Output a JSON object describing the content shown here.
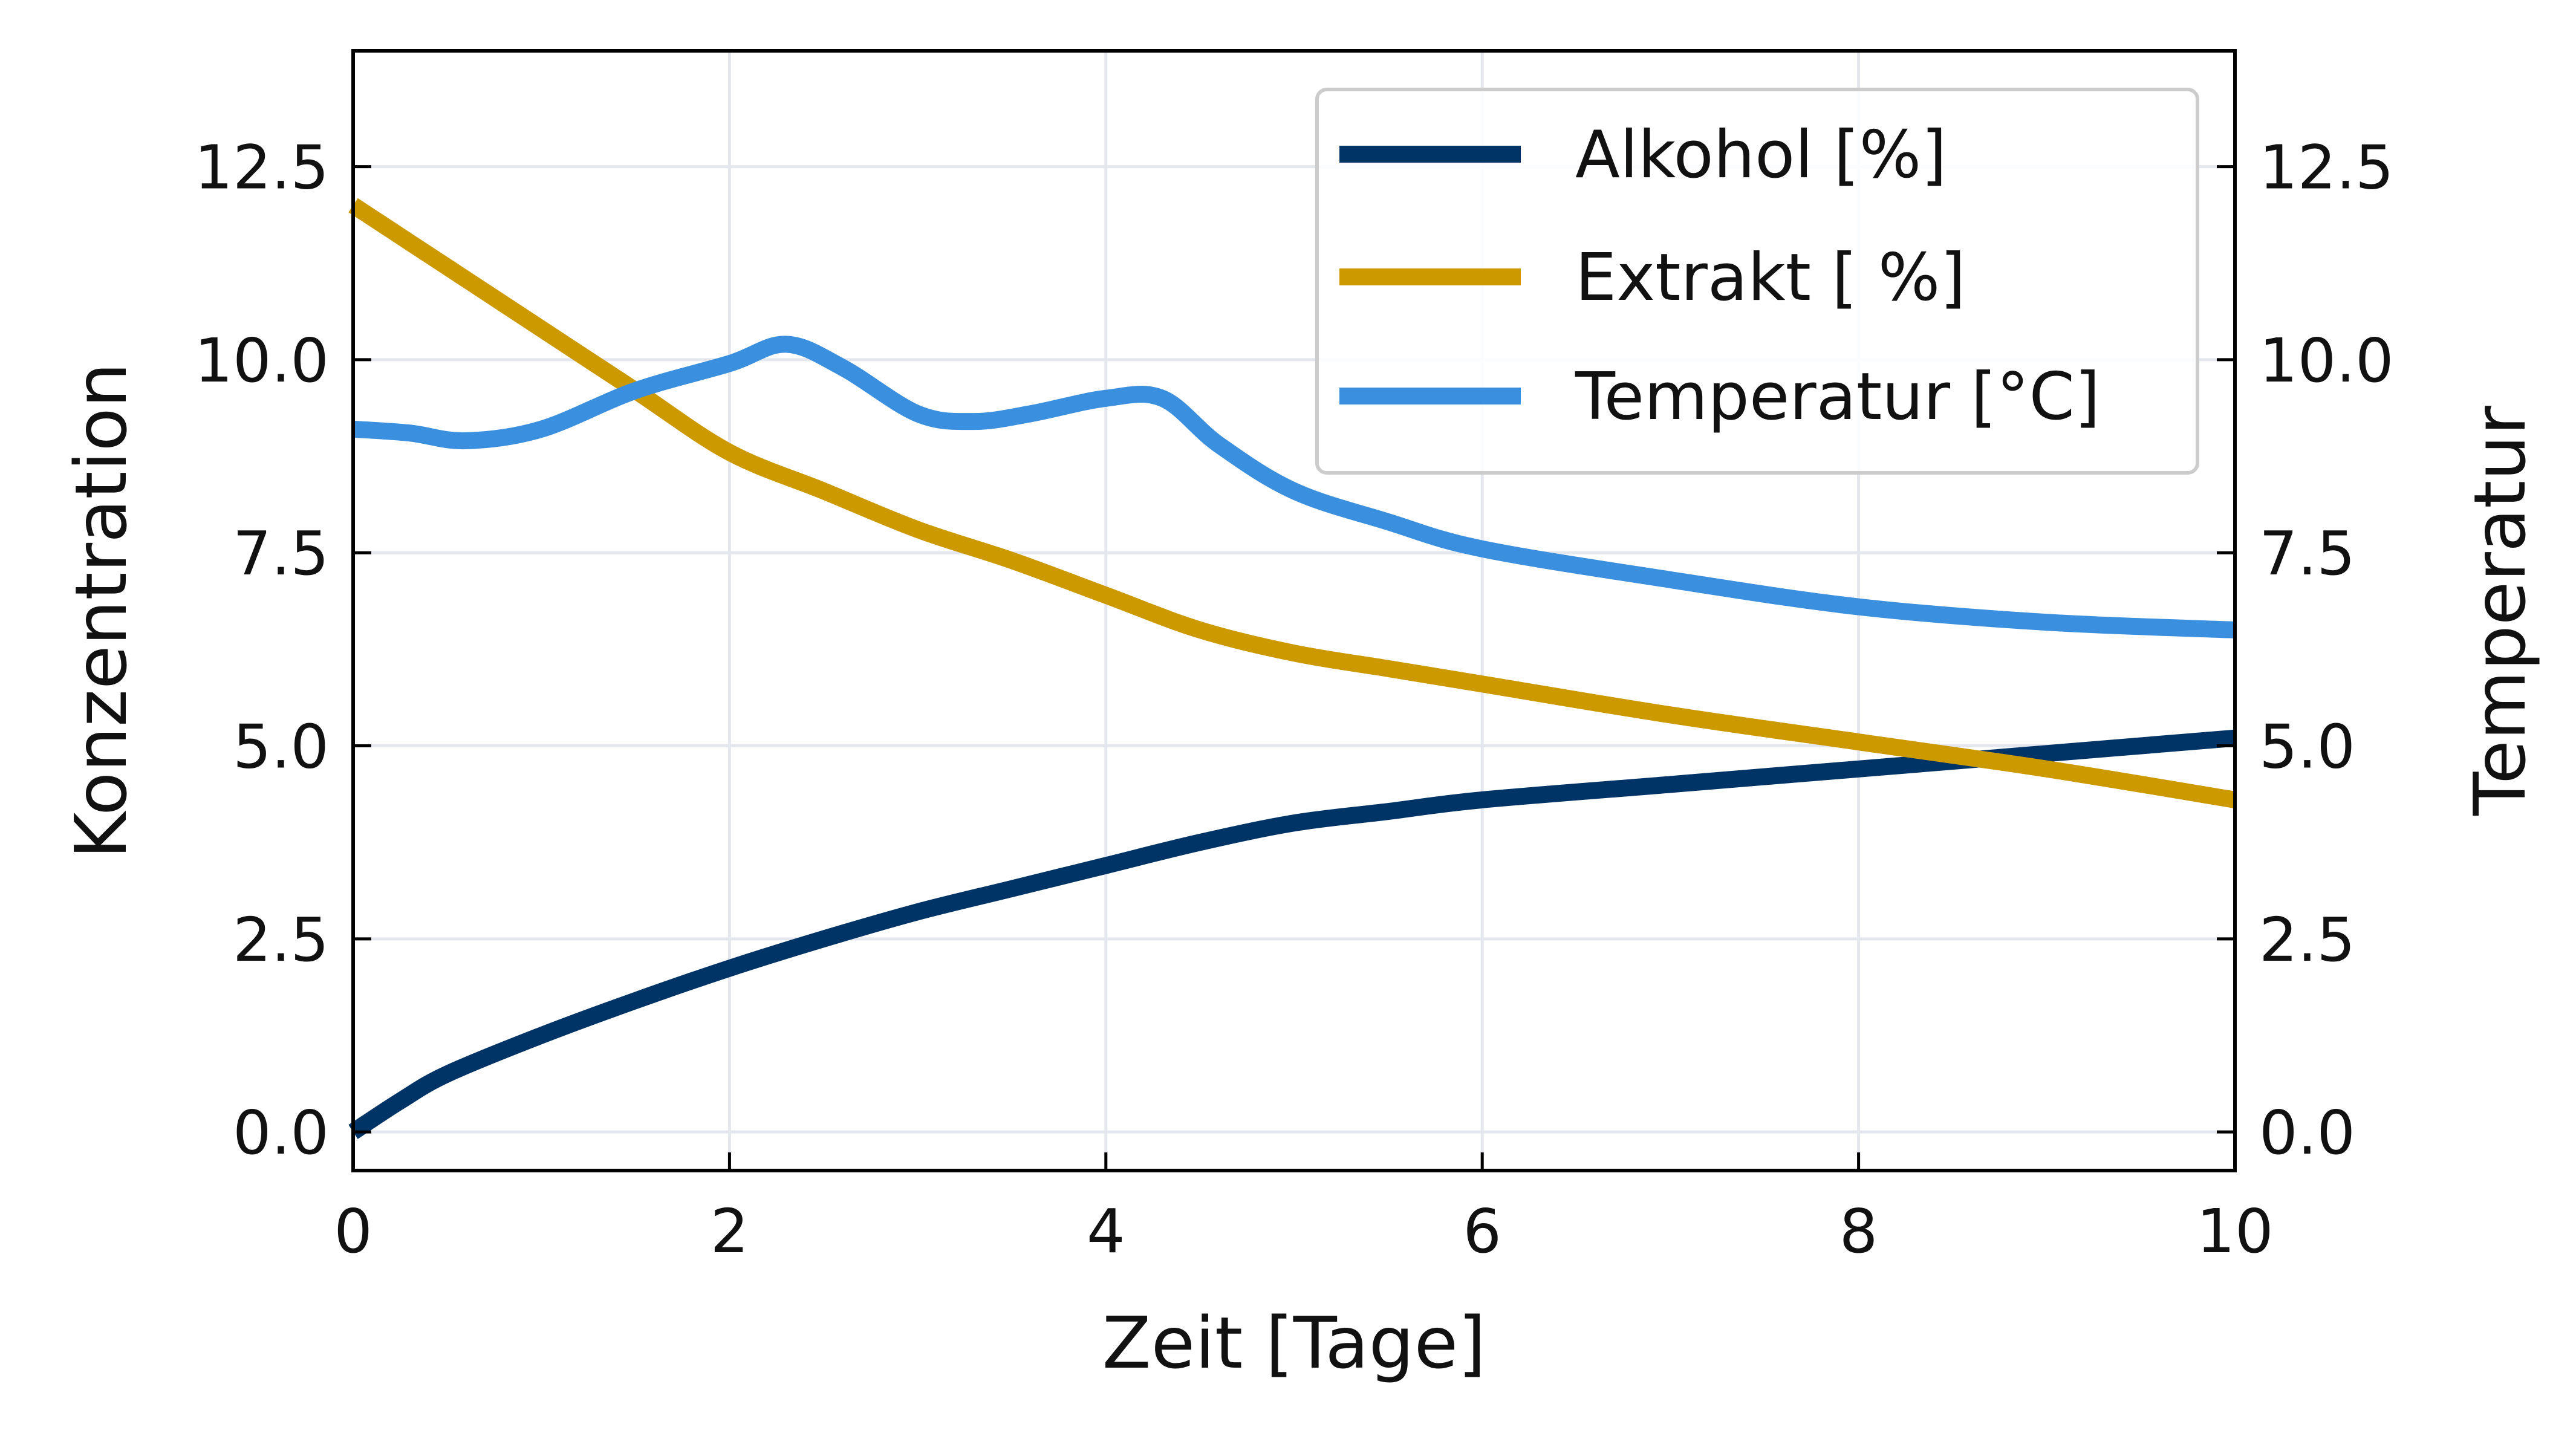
{
  "chart_data": {
    "type": "line",
    "xlabel": "Zeit [Tage]",
    "ylabel_left": "Konzentration",
    "ylabel_right": "Temperatur",
    "xlim": [
      0,
      10
    ],
    "ylim": [
      -0.5,
      14
    ],
    "x_ticks": [
      0,
      2,
      4,
      6,
      8,
      10
    ],
    "x_tick_labels": [
      "0",
      "2",
      "4",
      "6",
      "8",
      "10"
    ],
    "y_ticks": [
      0,
      2.5,
      5,
      7.5,
      10,
      12.5
    ],
    "y_tick_labels": [
      "0.0",
      "2.5",
      "5.0",
      "7.5",
      "10.0",
      "12.5"
    ],
    "grid": true,
    "legend_position": "top-right",
    "series": [
      {
        "name": "Alkohol [%]",
        "color": "#003366",
        "x": [
          0,
          0.25,
          0.5,
          1,
          1.5,
          2,
          2.5,
          3,
          3.5,
          4,
          4.5,
          5,
          5.5,
          6,
          7,
          8,
          9,
          10
        ],
        "y": [
          0,
          0.4,
          0.75,
          1.25,
          1.7,
          2.12,
          2.5,
          2.85,
          3.15,
          3.45,
          3.75,
          4.0,
          4.15,
          4.3,
          4.5,
          4.7,
          4.9,
          5.1
        ]
      },
      {
        "name": "Extrakt [ %]",
        "color": "#CC9900",
        "x": [
          0,
          0.5,
          1,
          1.5,
          2,
          2.5,
          3,
          3.5,
          4,
          4.5,
          5,
          5.5,
          6,
          7,
          8,
          9,
          10
        ],
        "y": [
          12.0,
          11.2,
          10.4,
          9.6,
          8.8,
          8.3,
          7.8,
          7.4,
          6.95,
          6.5,
          6.2,
          6.0,
          5.8,
          5.4,
          5.05,
          4.7,
          4.3
        ]
      },
      {
        "name": "Temperatur [°C]",
        "color": "#3A8FDF",
        "x": [
          0,
          0.3,
          0.6,
          1,
          1.5,
          2,
          2.3,
          2.6,
          3,
          3.3,
          3.6,
          4,
          4.3,
          4.6,
          5,
          5.5,
          6,
          7,
          8,
          9,
          10
        ],
        "y": [
          9.1,
          9.05,
          8.95,
          9.1,
          9.6,
          9.95,
          10.2,
          9.9,
          9.3,
          9.2,
          9.3,
          9.5,
          9.5,
          8.9,
          8.3,
          7.9,
          7.55,
          7.15,
          6.8,
          6.6,
          6.5
        ]
      }
    ]
  }
}
